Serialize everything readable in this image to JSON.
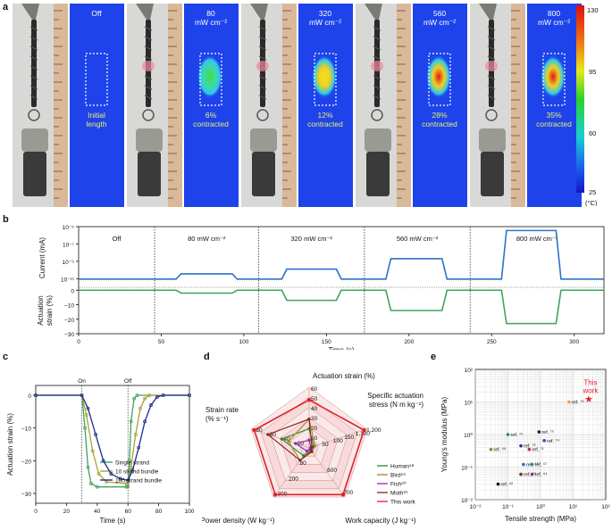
{
  "panel_labels": {
    "a": "a",
    "b": "b",
    "c": "c",
    "d": "d",
    "e": "e"
  },
  "panel_a": {
    "photos": [
      {
        "power": "Off",
        "unit": "",
        "status": "Initial",
        "status2": "length"
      },
      {
        "power": "80",
        "unit": "mW cm⁻²",
        "status": "6%",
        "status2": "contracted"
      },
      {
        "power": "320",
        "unit": "mW cm⁻²",
        "status": "12%",
        "status2": "contracted"
      },
      {
        "power": "560",
        "unit": "mW cm⁻²",
        "status": "28%",
        "status2": "contracted"
      },
      {
        "power": "800",
        "unit": "mW cm⁻²",
        "status": "35%",
        "status2": "contracted"
      }
    ],
    "colorbar": {
      "ticks": [
        "130",
        "95",
        "60",
        "25"
      ],
      "unit": "(°C)"
    }
  },
  "chart_data": [
    {
      "id": "b-current",
      "type": "line",
      "ylabel": "Current (mA)",
      "yticks": [
        "10⁻⁵",
        "10⁻⁷",
        "10⁻⁹",
        "10⁻¹¹"
      ],
      "segments": [
        "Off",
        "80 mW cm⁻²",
        "320 mW cm⁻²",
        "560 mW cm⁻²",
        "800 mW cm⁻²"
      ],
      "segment_bounds": [
        0,
        46,
        109,
        173,
        237,
        318
      ],
      "xlim": [
        0,
        318
      ],
      "series": [
        {
          "name": "Current",
          "color": "#2a74c9",
          "points": [
            [
              0,
              -11.05
            ],
            [
              59,
              -11.05
            ],
            [
              62,
              -10.45
            ],
            [
              93,
              -10.45
            ],
            [
              96,
              -11.05
            ],
            [
              123,
              -11.05
            ],
            [
              126,
              -9.9
            ],
            [
              156,
              -9.9
            ],
            [
              159,
              -11.05
            ],
            [
              186,
              -11.05
            ],
            [
              189,
              -8.7
            ],
            [
              220,
              -8.7
            ],
            [
              223,
              -11.05
            ],
            [
              256,
              -11.05
            ],
            [
              259,
              -5.45
            ],
            [
              289,
              -5.45
            ],
            [
              292,
              -11.05
            ],
            [
              318,
              -11.05
            ]
          ]
        }
      ]
    },
    {
      "id": "b-strain",
      "type": "line",
      "ylabel": "Actuation strain (%)",
      "xlabel": "Time (s)",
      "yticks": [
        "0",
        "−10",
        "−20",
        "−30"
      ],
      "xticks": [
        "0",
        "50",
        "100",
        "150",
        "200",
        "250",
        "300"
      ],
      "xlim": [
        0,
        318
      ],
      "ylim": [
        -30,
        2
      ],
      "series": [
        {
          "name": "Strain",
          "color": "#3aa65a",
          "points": [
            [
              0,
              0
            ],
            [
              59,
              0
            ],
            [
              62,
              -2
            ],
            [
              93,
              -2
            ],
            [
              96,
              0
            ],
            [
              123,
              0
            ],
            [
              126,
              -7
            ],
            [
              156,
              -7
            ],
            [
              159,
              0
            ],
            [
              186,
              0
            ],
            [
              189,
              -14
            ],
            [
              220,
              -14
            ],
            [
              223,
              0
            ],
            [
              256,
              0
            ],
            [
              259,
              -23
            ],
            [
              289,
              -23
            ],
            [
              292,
              0
            ],
            [
              318,
              0
            ]
          ]
        }
      ]
    },
    {
      "id": "c",
      "type": "line",
      "xlabel": "Time (s)",
      "ylabel": "Actuation strain (%)",
      "xlim": [
        0,
        100
      ],
      "ylim": [
        -33,
        3
      ],
      "xticks": [
        "0",
        "20",
        "40",
        "60",
        "80",
        "100"
      ],
      "yticks": [
        "0",
        "−10",
        "−20",
        "−30"
      ],
      "on_label": "On",
      "off_label": "Off",
      "on_time": 30,
      "off_time": 60,
      "series": [
        {
          "name": "Single strand",
          "color": "#3aa55e",
          "points": [
            [
              0,
              0
            ],
            [
              30,
              0
            ],
            [
              32,
              -10
            ],
            [
              34,
              -22
            ],
            [
              36,
              -27
            ],
            [
              40,
              -28
            ],
            [
              59,
              -28
            ],
            [
              60,
              -28
            ],
            [
              61,
              -20
            ],
            [
              62,
              -8
            ],
            [
              64,
              -1
            ],
            [
              66,
              0
            ],
            [
              100,
              0
            ]
          ]
        },
        {
          "name": "10 strand bundle",
          "color": "#a9a13a",
          "points": [
            [
              0,
              0
            ],
            [
              30,
              0
            ],
            [
              33,
              -6
            ],
            [
              37,
              -17
            ],
            [
              41,
              -24
            ],
            [
              46,
              -26.5
            ],
            [
              59,
              -27
            ],
            [
              60,
              -27
            ],
            [
              62,
              -22
            ],
            [
              65,
              -12
            ],
            [
              68,
              -4
            ],
            [
              71,
              -1
            ],
            [
              74,
              0
            ],
            [
              100,
              0
            ]
          ]
        },
        {
          "name": "100 strand bundle",
          "color": "#1e2a8c",
          "points": [
            [
              0,
              0
            ],
            [
              30,
              0
            ],
            [
              34,
              -4
            ],
            [
              39,
              -12
            ],
            [
              44,
              -20
            ],
            [
              49,
              -24
            ],
            [
              55,
              -25.5
            ],
            [
              60,
              -26
            ],
            [
              63,
              -23
            ],
            [
              67,
              -16
            ],
            [
              71,
              -8
            ],
            [
              75,
              -3
            ],
            [
              79,
              -0.5
            ],
            [
              83,
              0
            ],
            [
              100,
              0
            ]
          ]
        }
      ]
    },
    {
      "id": "d",
      "type": "radar",
      "axes": [
        {
          "name": "Actuation strain (%)",
          "max": 60,
          "ticks": [
            "10",
            "20",
            "30",
            "40",
            "50",
            "60"
          ]
        },
        {
          "name": "Specific actuation stress (N m kg⁻¹)",
          "max": 1200,
          "ticks": [
            "50",
            "100",
            "150",
            "1,100",
            "1,200"
          ]
        },
        {
          "name": "Work capacity (J kg⁻¹)",
          "max": 700,
          "ticks": [
            "600",
            "700"
          ]
        },
        {
          "name": "Power density (W kg⁻¹)",
          "max": 300,
          "ticks": [
            "80",
            "200",
            "300"
          ]
        },
        {
          "name": "Strain rate (% s⁻¹)",
          "max": 80,
          "ticks": [
            "20",
            "40",
            "60",
            "80"
          ]
        }
      ],
      "series": [
        {
          "name": "Human⁵⁸",
          "color": "#1e8c2a",
          "values": [
            20,
            100,
            40,
            50,
            40
          ]
        },
        {
          "name": "Bird⁵⁹",
          "color": "#9a8a2a",
          "values": [
            30,
            130,
            60,
            80,
            30
          ]
        },
        {
          "name": "Fish⁶⁰",
          "color": "#8a2ab5",
          "values": [
            8,
            40,
            20,
            20,
            20
          ]
        },
        {
          "name": "Moth⁶¹",
          "color": "#8a1c1c",
          "values": [
            30,
            60,
            50,
            80,
            60
          ]
        },
        {
          "name": "This work",
          "color": "#e0202a",
          "values": [
            50,
            1200,
            700,
            300,
            80
          ]
        }
      ]
    },
    {
      "id": "e",
      "type": "scatter",
      "xlabel": "Tensile strength (MPa)",
      "ylabel": "Young's modulus (MPa)",
      "x_log": true,
      "y_log": true,
      "xlim": [
        0.01,
        100
      ],
      "ylim": [
        0.01,
        100
      ],
      "xticks": [
        "10⁻²",
        "10⁻¹",
        "10⁰",
        "10¹",
        "10²"
      ],
      "yticks": [
        "10²",
        "10¹",
        "10⁰",
        "10⁻¹",
        "10⁻²"
      ],
      "points": [
        {
          "label": "ref. ⁷⁰",
          "x": 7.5,
          "y": 10,
          "color": "#f0a030"
        },
        {
          "label": "This work",
          "x": 30,
          "y": 12,
          "color": "#e0202a"
        },
        {
          "label": "ref. ⁷²",
          "x": 0.1,
          "y": 1.0,
          "color": "#2a8c3a"
        },
        {
          "label": "ref. ⁷⁵",
          "x": 0.9,
          "y": 1.2,
          "color": "#222222"
        },
        {
          "label": "ref. ⁷⁴",
          "x": 1.3,
          "y": 0.65,
          "color": "#7a2ab5"
        },
        {
          "label": "ref. ⁶⁹",
          "x": 0.03,
          "y": 0.35,
          "color": "#8a8a2a"
        },
        {
          "label": "ref. ⁷³",
          "x": 0.25,
          "y": 0.45,
          "color": "#1a3a8c"
        },
        {
          "label": "ref. ⁷¹",
          "x": 0.45,
          "y": 0.35,
          "color": "#b52a6a"
        },
        {
          "label": "ref. ⁶⁵",
          "x": 0.3,
          "y": 0.12,
          "color": "#2a6ac9"
        },
        {
          "label": "ref. ⁶⁷",
          "x": 0.55,
          "y": 0.12,
          "color": "#2a8c8c"
        },
        {
          "label": "ref. ⁶⁶",
          "x": 0.25,
          "y": 0.06,
          "color": "#7a2a2a"
        },
        {
          "label": "ref. ⁶⁴",
          "x": 0.55,
          "y": 0.06,
          "color": "#8a2ab5"
        },
        {
          "label": "ref. ⁶²",
          "x": 0.05,
          "y": 0.03,
          "color": "#111111"
        }
      ],
      "this_work_label": "This",
      "this_work_label2": "work"
    }
  ]
}
